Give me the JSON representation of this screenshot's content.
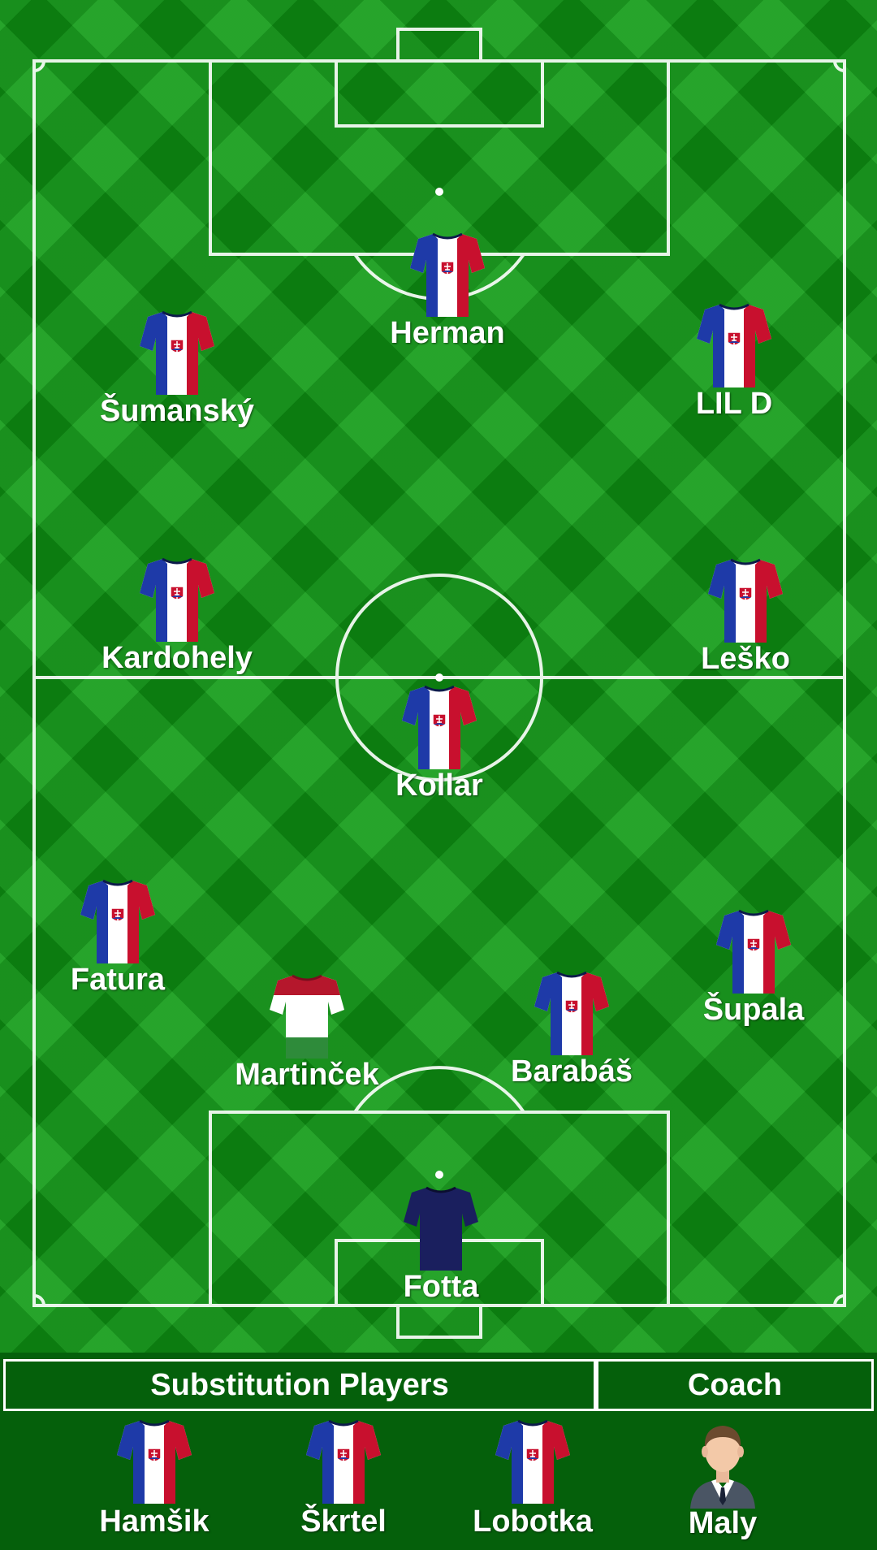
{
  "lineup": {
    "starters": [
      {
        "name": "Herman",
        "kit": "slovakia"
      },
      {
        "name": "Šumanský",
        "kit": "slovakia"
      },
      {
        "name": "LIL D",
        "kit": "slovakia"
      },
      {
        "name": "Kardohely",
        "kit": "slovakia"
      },
      {
        "name": "Leško",
        "kit": "slovakia"
      },
      {
        "name": "Kollar",
        "kit": "slovakia"
      },
      {
        "name": "Fatura",
        "kit": "slovakia"
      },
      {
        "name": "Martinček",
        "kit": "hungary"
      },
      {
        "name": "Barabáš",
        "kit": "slovakia"
      },
      {
        "name": "Šupala",
        "kit": "slovakia"
      },
      {
        "name": "Fotta",
        "kit": "goalkeeper"
      }
    ]
  },
  "bench": {
    "header": "Substitution Players",
    "players": [
      {
        "name": "Hamšik",
        "kit": "slovakia"
      },
      {
        "name": "Škrtel",
        "kit": "slovakia"
      },
      {
        "name": "Lobotka",
        "kit": "slovakia"
      }
    ]
  },
  "coach": {
    "header": "Coach",
    "name": "Maly",
    "icon": "coach-avatar-icon"
  },
  "colors": {
    "pitch": "#0f9a14",
    "panel": "#05600b",
    "slovakia_blue": "#1e3aa8",
    "slovakia_red": "#c8102e",
    "hungary_green": "#2e8b3a",
    "goalkeeper": "#1a1f5e"
  }
}
